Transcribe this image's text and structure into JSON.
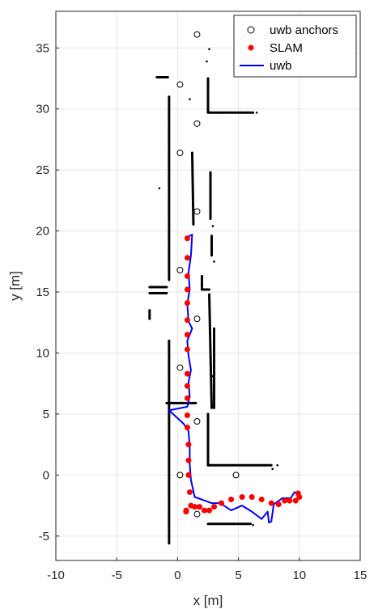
{
  "chart_data": {
    "type": "scatter",
    "xlabel": "x [m]",
    "ylabel": "y [m]",
    "xlim": [
      -10,
      15
    ],
    "ylim": [
      -7,
      38
    ],
    "xticks": [
      -10,
      -5,
      0,
      5,
      10,
      15
    ],
    "yticks": [
      -5,
      0,
      5,
      10,
      15,
      20,
      25,
      30,
      35
    ],
    "grid": true,
    "legend_position": "top-right",
    "colors": {
      "anchors": "#000000",
      "slam": "#ff0000",
      "uwb": "#0000ff",
      "map": "#000000",
      "grid": "#e6e6e6",
      "axis": "#262626"
    },
    "series": [
      {
        "name": "uwb anchors",
        "kind": "hollow-circle",
        "points": [
          [
            1.6,
            36.1
          ],
          [
            0.2,
            32.0
          ],
          [
            1.6,
            28.8
          ],
          [
            0.2,
            26.4
          ],
          [
            1.6,
            21.6
          ],
          [
            0.2,
            16.8
          ],
          [
            1.6,
            12.8
          ],
          [
            0.2,
            8.8
          ],
          [
            1.6,
            4.4
          ],
          [
            0.2,
            0.0
          ],
          [
            4.8,
            0.0
          ],
          [
            1.6,
            -3.2
          ]
        ]
      },
      {
        "name": "SLAM",
        "kind": "filled-dot",
        "points": [
          [
            0.8,
            19.4
          ],
          [
            0.8,
            17.8
          ],
          [
            0.8,
            16.3
          ],
          [
            0.8,
            15.2
          ],
          [
            0.8,
            14.1
          ],
          [
            0.8,
            12.7
          ],
          [
            0.8,
            11.5
          ],
          [
            0.8,
            10.3
          ],
          [
            0.8,
            8.3
          ],
          [
            0.8,
            7.3
          ],
          [
            0.8,
            6.3
          ],
          [
            0.8,
            4.9
          ],
          [
            0.8,
            3.9
          ],
          [
            0.9,
            2.5
          ],
          [
            0.9,
            1.2
          ],
          [
            0.9,
            0.0
          ],
          [
            1.0,
            -1.4
          ],
          [
            1.1,
            -2.5
          ],
          [
            0.7,
            -2.9
          ],
          [
            0.7,
            -3.0
          ],
          [
            1.4,
            -2.6
          ],
          [
            1.8,
            -2.6
          ],
          [
            2.2,
            -2.9
          ],
          [
            2.6,
            -2.9
          ],
          [
            3.0,
            -2.6
          ],
          [
            3.6,
            -2.3
          ],
          [
            4.4,
            -2.0
          ],
          [
            5.3,
            -1.8
          ],
          [
            6.1,
            -1.8
          ],
          [
            6.9,
            -2.0
          ],
          [
            7.7,
            -2.3
          ],
          [
            8.3,
            -2.4
          ],
          [
            8.8,
            -2.1
          ],
          [
            9.2,
            -2.1
          ],
          [
            9.7,
            -2.1
          ],
          [
            10.0,
            -1.8
          ],
          [
            9.9,
            -1.5
          ]
        ]
      },
      {
        "name": "uwb",
        "kind": "line",
        "points": [
          [
            0.8,
            19.5
          ],
          [
            1.2,
            19.7
          ],
          [
            1.1,
            18.0
          ],
          [
            0.9,
            16.6
          ],
          [
            1.0,
            15.2
          ],
          [
            0.8,
            14.0
          ],
          [
            0.9,
            12.6
          ],
          [
            1.2,
            12.0
          ],
          [
            0.8,
            11.0
          ],
          [
            0.9,
            9.8
          ],
          [
            1.1,
            8.6
          ],
          [
            0.9,
            7.6
          ],
          [
            1.0,
            6.4
          ],
          [
            0.8,
            5.6
          ],
          [
            -0.7,
            5.3
          ],
          [
            0.5,
            4.2
          ],
          [
            0.9,
            3.6
          ],
          [
            1.0,
            2.3
          ],
          [
            1.0,
            0.9
          ],
          [
            1.1,
            -0.4
          ],
          [
            1.4,
            -1.8
          ],
          [
            2.8,
            -2.3
          ],
          [
            3.5,
            -2.3
          ],
          [
            4.4,
            -2.9
          ],
          [
            5.3,
            -2.5
          ],
          [
            6.1,
            -3.0
          ],
          [
            6.9,
            -3.6
          ],
          [
            7.4,
            -3.0
          ],
          [
            7.5,
            -3.9
          ],
          [
            7.7,
            -3.8
          ],
          [
            7.9,
            -2.4
          ],
          [
            8.6,
            -1.9
          ],
          [
            9.3,
            -1.9
          ],
          [
            9.6,
            -1.4
          ],
          [
            10.0,
            -1.6
          ]
        ]
      }
    ]
  }
}
